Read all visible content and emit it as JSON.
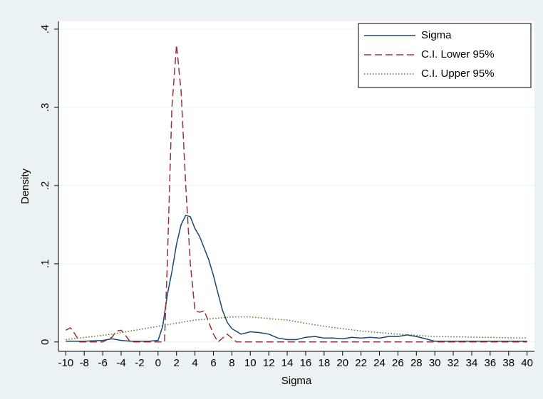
{
  "chart_data": {
    "type": "line",
    "xlabel": "Sigma",
    "ylabel": "Density",
    "xlim": [
      -10.8,
      40.8
    ],
    "ylim": [
      -0.012,
      0.41
    ],
    "xticks": [
      -10,
      -8,
      -6,
      -4,
      -2,
      0,
      2,
      4,
      6,
      8,
      10,
      12,
      14,
      16,
      18,
      20,
      22,
      24,
      26,
      28,
      30,
      32,
      34,
      36,
      38,
      40
    ],
    "yticks": [
      0,
      {
        "value": 0.1,
        "label": ".1"
      },
      {
        "value": 0.2,
        "label": ".2"
      },
      {
        "value": 0.3,
        "label": ".3"
      },
      {
        "value": 0.4,
        "label": ".4"
      }
    ],
    "grid": true,
    "legend": "top-right",
    "series": [
      {
        "name": "Sigma",
        "color": "#1a476f",
        "style": "solid",
        "x": [
          -10,
          -8,
          -6,
          -5,
          -4,
          -3,
          -1,
          0,
          0.5,
          1,
          1.5,
          2,
          2.5,
          3,
          3.5,
          4,
          4.5,
          5,
          5.5,
          6,
          6.5,
          7,
          7.5,
          8,
          9,
          10,
          11,
          12,
          13,
          14,
          15,
          16,
          17,
          18,
          19,
          20,
          21,
          22,
          23,
          24,
          25,
          26,
          27,
          28,
          29,
          30,
          32,
          35,
          40
        ],
        "values": [
          0.001,
          0.001,
          0.002,
          0.004,
          0.002,
          0.001,
          0.001,
          0.002,
          0.02,
          0.06,
          0.09,
          0.125,
          0.15,
          0.162,
          0.16,
          0.145,
          0.135,
          0.12,
          0.105,
          0.085,
          0.062,
          0.04,
          0.025,
          0.017,
          0.01,
          0.013,
          0.012,
          0.01,
          0.005,
          0.003,
          0.003,
          0.006,
          0.007,
          0.005,
          0.005,
          0.004,
          0.006,
          0.005,
          0.006,
          0.005,
          0.007,
          0.007,
          0.009,
          0.007,
          0.004,
          0.001,
          0.001,
          0.001,
          0.001
        ]
      },
      {
        "name": "C.I. Lower 95%",
        "color": "#90353b",
        "style": "dashed",
        "x": [
          -10,
          -9.5,
          -9,
          -8.5,
          -6,
          -5,
          -4.5,
          -4,
          -3.5,
          -3,
          0,
          0.7,
          1,
          1.5,
          2,
          2.5,
          3,
          3.5,
          4,
          4.5,
          5,
          5.5,
          6,
          6.5,
          7,
          7.5,
          8,
          8.5,
          40
        ],
        "values": [
          0.015,
          0.018,
          0.01,
          0,
          0,
          0.006,
          0.014,
          0.015,
          0.008,
          0,
          0,
          0,
          0.1,
          0.3,
          0.38,
          0.32,
          0.2,
          0.1,
          0.04,
          0.038,
          0.04,
          0.025,
          0.01,
          0,
          0.005,
          0.01,
          0.005,
          0,
          0
        ]
      },
      {
        "name": "C.I. Upper 95%",
        "color": "#55752f",
        "style": "dotted",
        "x": [
          -10,
          -5,
          0,
          4,
          8,
          10,
          14,
          18,
          22,
          26,
          30,
          35,
          40
        ],
        "values": [
          0.003,
          0.01,
          0.02,
          0.028,
          0.032,
          0.032,
          0.028,
          0.02,
          0.014,
          0.01,
          0.007,
          0.006,
          0.005
        ]
      }
    ]
  }
}
